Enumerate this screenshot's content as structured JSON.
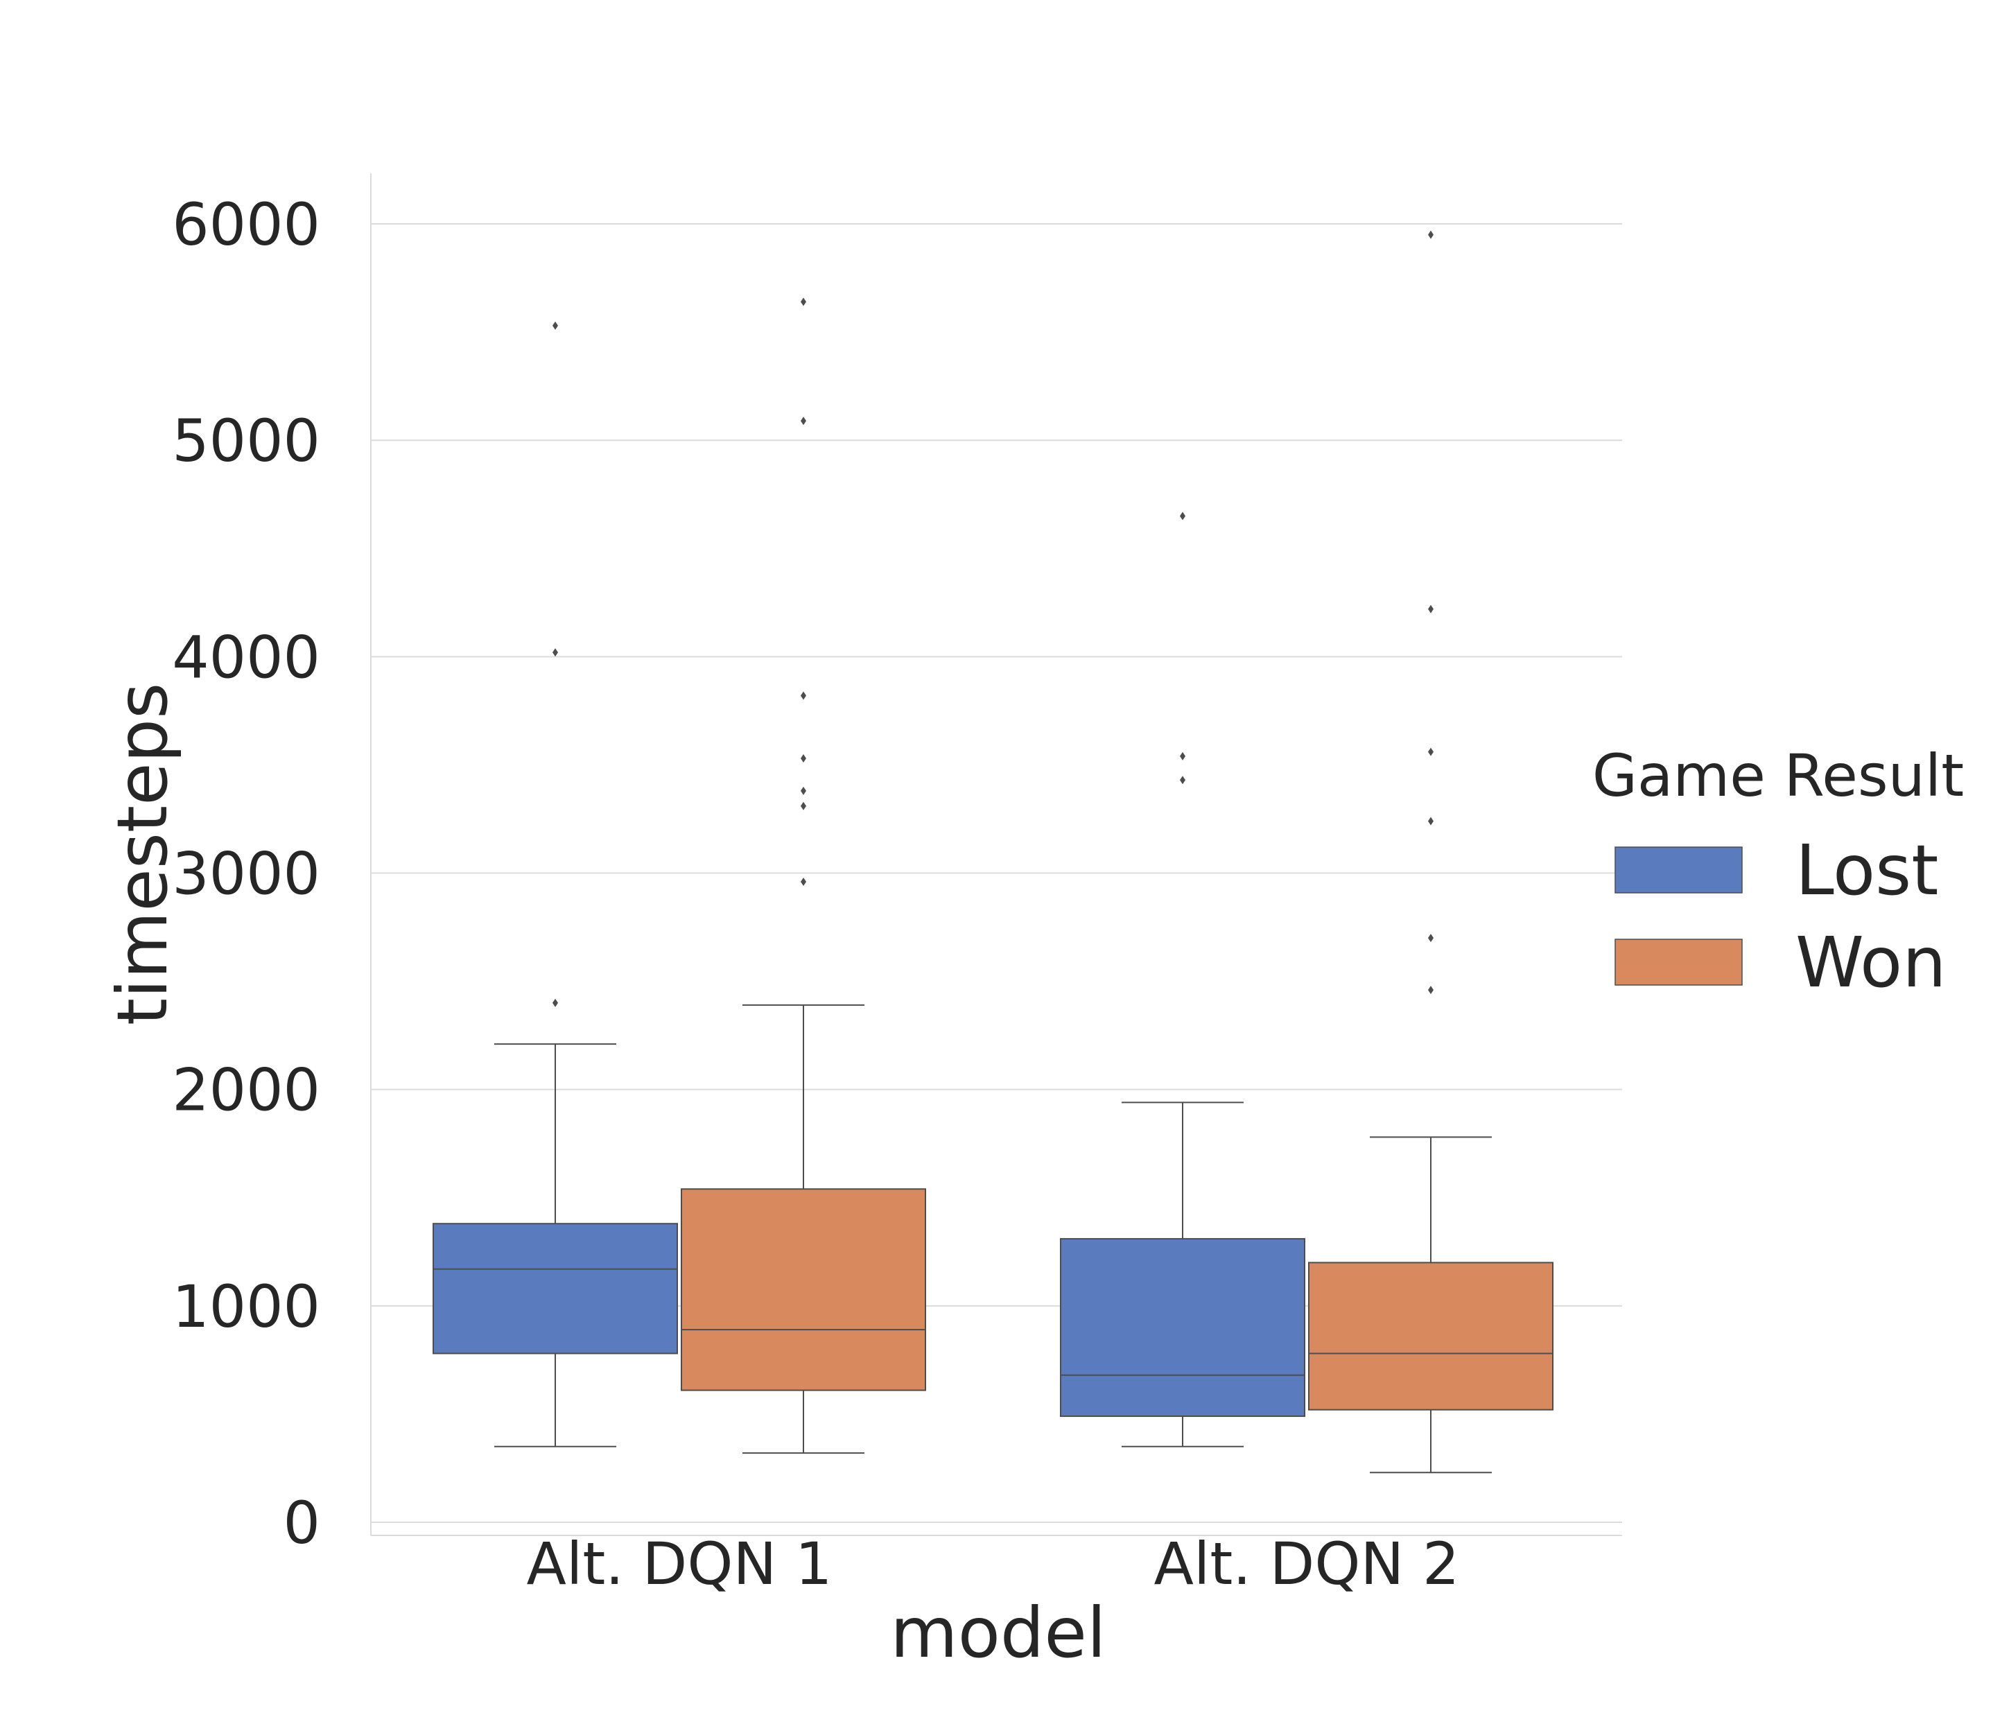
{
  "chart_data": {
    "type": "box",
    "xlabel": "model",
    "ylabel": "timesteps",
    "categories": [
      "Alt. DQN 1",
      "Alt. DQN 2"
    ],
    "ylim": [
      -50,
      6250
    ],
    "yticks": [
      0,
      1000,
      2000,
      3000,
      4000,
      5000,
      6000
    ],
    "grid": true,
    "legend": {
      "title": "Game Result",
      "placement": "right"
    },
    "series": [
      {
        "name": "Lost",
        "color": "#5a7cbf",
        "boxes": [
          {
            "category": "Alt. DQN 1",
            "whisker_low": 350,
            "q1": 780,
            "median": 1170,
            "q3": 1380,
            "whisker_high": 2210,
            "outliers": [
              2400,
              4020,
              5530
            ]
          },
          {
            "category": "Alt. DQN 2",
            "whisker_low": 350,
            "q1": 490,
            "median": 680,
            "q3": 1310,
            "whisker_high": 1940,
            "outliers": [
              3430,
              3540,
              4650
            ]
          }
        ]
      },
      {
        "name": "Won",
        "color": "#d88a5e",
        "boxes": [
          {
            "category": "Alt. DQN 1",
            "whisker_low": 320,
            "q1": 610,
            "median": 890,
            "q3": 1540,
            "whisker_high": 2390,
            "outliers": [
              2960,
              3310,
              3380,
              3530,
              3820,
              5090,
              5640
            ]
          },
          {
            "category": "Alt. DQN 2",
            "whisker_low": 230,
            "q1": 520,
            "median": 780,
            "q3": 1200,
            "whisker_high": 1780,
            "outliers": [
              2460,
              2700,
              3240,
              3560,
              4220,
              5950
            ]
          }
        ]
      }
    ]
  }
}
